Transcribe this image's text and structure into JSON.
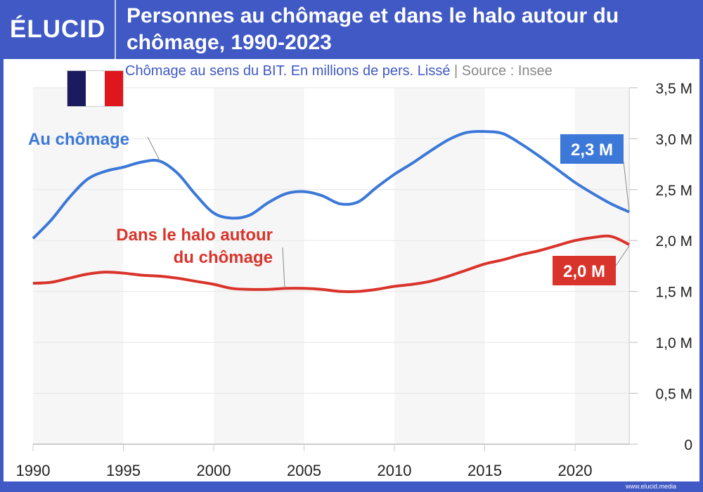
{
  "header": {
    "logo": "ÉLUCID",
    "title": "Personnes au chômage et dans le halo autour du chômage, 1990-2023"
  },
  "subtitle": {
    "text": "Chômage au sens du BIT. En millions de pers. Lissé",
    "separator": "|",
    "source": "Source : Insee"
  },
  "flag": {
    "colors": [
      "#1a1a5e",
      "#ffffff",
      "#e0161e"
    ]
  },
  "footer": "www.elucid.media",
  "chart_data": {
    "type": "line",
    "x": [
      1990,
      1991,
      1992,
      1993,
      1994,
      1995,
      1996,
      1997,
      1998,
      1999,
      2000,
      2001,
      2002,
      2003,
      2004,
      2005,
      2006,
      2007,
      2008,
      2009,
      2010,
      2011,
      2012,
      2013,
      2014,
      2015,
      2016,
      2017,
      2018,
      2019,
      2020,
      2021,
      2022,
      2023
    ],
    "series": [
      {
        "name": "Au chômage",
        "color": "#3b78d8",
        "end_label": "2,3 M",
        "values": [
          2.02,
          2.2,
          2.42,
          2.6,
          2.68,
          2.72,
          2.77,
          2.78,
          2.66,
          2.45,
          2.27,
          2.22,
          2.25,
          2.37,
          2.46,
          2.48,
          2.44,
          2.36,
          2.38,
          2.52,
          2.65,
          2.76,
          2.88,
          2.99,
          3.06,
          3.07,
          3.05,
          2.95,
          2.83,
          2.7,
          2.57,
          2.46,
          2.36,
          2.28
        ]
      },
      {
        "name": "Dans le halo autour du chômage",
        "color": "#d9342b",
        "end_label": "2,0 M",
        "values": [
          1.58,
          1.59,
          1.63,
          1.67,
          1.69,
          1.68,
          1.66,
          1.65,
          1.63,
          1.6,
          1.57,
          1.53,
          1.52,
          1.52,
          1.53,
          1.53,
          1.52,
          1.5,
          1.5,
          1.52,
          1.55,
          1.57,
          1.6,
          1.65,
          1.71,
          1.77,
          1.81,
          1.86,
          1.9,
          1.95,
          2.0,
          2.03,
          2.04,
          1.96
        ]
      }
    ],
    "series_labels": [
      "Au chômage",
      "Dans le halo autour",
      "du chômage"
    ],
    "xticks": [
      "1990",
      "1995",
      "2000",
      "2005",
      "2010",
      "2015",
      "2020"
    ],
    "yticks": [
      "0",
      "0,5 M",
      "1,0 M",
      "1,5 M",
      "2,0 M",
      "2,5 M",
      "3,0 M",
      "3,5 M"
    ],
    "ylim": [
      0,
      3.5
    ],
    "xlim": [
      1990,
      2023
    ],
    "grid": true
  }
}
